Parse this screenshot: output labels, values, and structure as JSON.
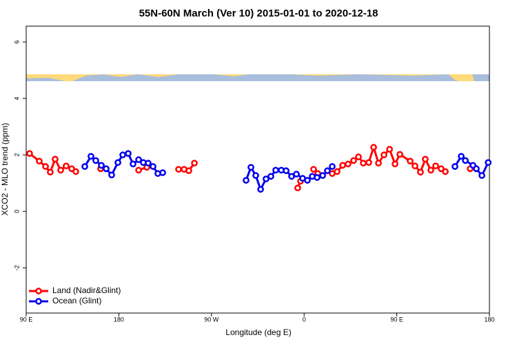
{
  "chart_data": {
    "type": "line",
    "title": "55N-60N March (Ver 10)   2015-01-01 to 2020-12-18",
    "x_label": "Longitude (deg E)",
    "y_label": "XCO2 - MLO trend (ppm)",
    "xlim": [
      90,
      540
    ],
    "ylim": [
      -3.6,
      6.56
    ],
    "xticks": [
      {
        "value": 90,
        "label": "90 E"
      },
      180,
      {
        "value": 270,
        "label": "90 W"
      },
      {
        "value": 360,
        "label": "0"
      },
      {
        "value": 450,
        "label": "90 E"
      },
      {
        "value": 540,
        "label": "180"
      }
    ],
    "yticks": [
      -2,
      0,
      2,
      4,
      6
    ],
    "legend": "bottom-left",
    "series": [
      {
        "name": "Land (Nadir&Glint)",
        "color": "#ff0000",
        "x": [
          93.3,
          102.7,
          108.8,
          113.4,
          118.1,
          123.5,
          128.8,
          134.2,
          138.2,
          null,
          162.3,
          null,
          199.2,
          207.2,
          null,
          238,
          243.4,
          248,
          253.4,
          null,
          353.8,
          356.5,
          null,
          369.2,
          373.3,
          null,
          387.3,
          392,
          397.4,
          402.7,
          408.1,
          412.8,
          417.5,
          422.8,
          427.5,
          432.2,
          437.6,
          443,
          448.3,
          453,
          463,
          467.7,
          473,
          477.7,
          483.1,
          487.8,
          493.1,
          497.2,
          null,
          521.3
        ],
        "values": [
          2.05,
          1.78,
          1.59,
          1.39,
          1.85,
          1.46,
          1.61,
          1.51,
          1.41,
          null,
          1.51,
          null,
          1.46,
          1.56,
          null,
          1.49,
          1.49,
          1.44,
          1.71,
          null,
          0.83,
          1.07,
          null,
          1.49,
          1.34,
          null,
          1.34,
          1.41,
          1.63,
          1.68,
          1.8,
          1.93,
          1.71,
          1.73,
          2.27,
          1.71,
          2,
          2.2,
          1.68,
          2.02,
          1.78,
          1.61,
          1.39,
          1.85,
          1.46,
          1.61,
          1.51,
          1.41,
          null,
          1.51
        ]
      },
      {
        "name": "Ocean (Glint)",
        "color": "#0000ee",
        "x": [
          146.9,
          152.9,
          157.6,
          163,
          167.7,
          173,
          179.1,
          183.8,
          189.1,
          193.8,
          199.2,
          203.8,
          208.5,
          213.2,
          217.9,
          222.6,
          null,
          303.6,
          308.3,
          313,
          317.7,
          323,
          327.7,
          332.4,
          337.8,
          342.5,
          347.8,
          352.5,
          358.5,
          363.2,
          367.9,
          372.6,
          378,
          382.6,
          387.3,
          null,
          506.5,
          512.6,
          516.6,
          524,
          527.3,
          532.7,
          538.8
        ],
        "values": [
          1.59,
          1.95,
          1.8,
          1.63,
          1.51,
          1.29,
          1.73,
          2,
          2.05,
          1.68,
          1.83,
          1.73,
          1.71,
          1.59,
          1.34,
          1.37,
          null,
          1.1,
          1.56,
          1.27,
          0.78,
          1.15,
          1.24,
          1.46,
          1.46,
          1.44,
          1.24,
          1.32,
          1.17,
          1.1,
          1.24,
          1.2,
          1.27,
          1.44,
          1.59,
          null,
          1.59,
          1.95,
          1.8,
          1.63,
          1.51,
          1.27,
          1.73
        ]
      }
    ]
  }
}
